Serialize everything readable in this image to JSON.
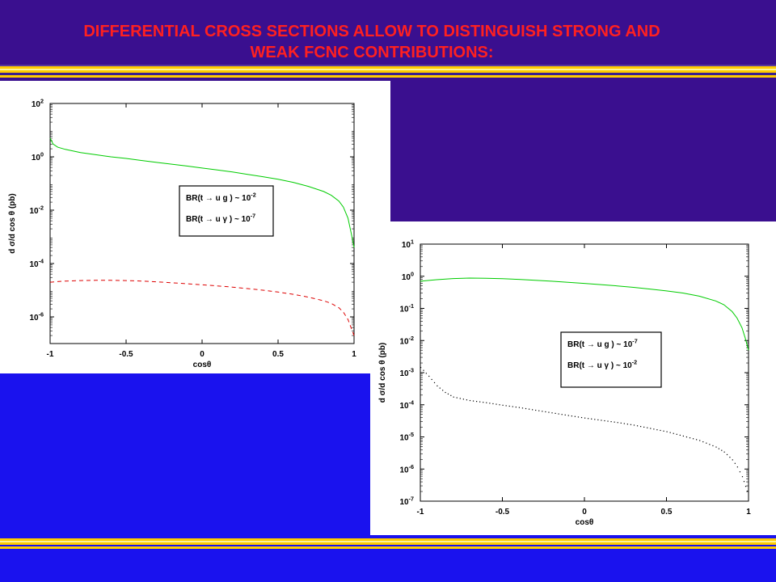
{
  "slide": {
    "title_line1": "DIFFERENTIAL CROSS SECTIONS ALLOW TO DISTINGUISH STRONG AND",
    "title_line2": "WEAK FCNC CONTRIBUTIONS:",
    "colors": {
      "title": "#ff2020",
      "background_top": "#3a0f8f",
      "background_bottom": "#1a12ee",
      "stripe": "#ffcc00"
    }
  },
  "chart_data": [
    {
      "type": "line",
      "xlabel": "cosθ",
      "ylabel": "d σ/d cos θ (pb)",
      "yscale": "log",
      "xlim": [
        -1,
        1
      ],
      "ylim": [
        1e-07,
        100
      ],
      "x_ticks": [
        "-1",
        "-0.5",
        "0",
        "0.5",
        "1"
      ],
      "y_ticks": [
        {
          "base": "10",
          "exp": "2"
        },
        {
          "base": "10",
          "exp": "0"
        },
        {
          "base": "10",
          "exp": "-2"
        },
        {
          "base": "10",
          "exp": "-4"
        },
        {
          "base": "10",
          "exp": "-6"
        }
      ],
      "legend": {
        "position": "center-right",
        "line1": {
          "text": "BR(t → u g ) ~ 10",
          "exp": "-2"
        },
        "line2": {
          "text": "BR(t → u γ )  ~ 10",
          "exp": "-7"
        }
      },
      "series": [
        {
          "color": "#00cc00",
          "style": "solid",
          "x": [
            -1,
            -0.98,
            -0.95,
            -0.9,
            -0.8,
            -0.7,
            -0.6,
            -0.5,
            -0.4,
            -0.3,
            -0.2,
            -0.1,
            0,
            0.1,
            0.2,
            0.3,
            0.4,
            0.5,
            0.6,
            0.7,
            0.8,
            0.85,
            0.9,
            0.93,
            0.96,
            0.98,
            0.99,
            1.0
          ],
          "y": [
            5,
            3,
            2.3,
            1.9,
            1.45,
            1.2,
            1.0,
            0.87,
            0.73,
            0.62,
            0.53,
            0.45,
            0.38,
            0.32,
            0.27,
            0.22,
            0.18,
            0.145,
            0.11,
            0.078,
            0.05,
            0.036,
            0.022,
            0.013,
            0.005,
            0.0015,
            0.0008,
            0.0004
          ]
        },
        {
          "color": "#dd0000",
          "style": "dashed",
          "x": [
            -1,
            -0.9,
            -0.8,
            -0.7,
            -0.6,
            -0.5,
            -0.4,
            -0.3,
            -0.2,
            -0.1,
            0,
            0.1,
            0.2,
            0.3,
            0.4,
            0.5,
            0.6,
            0.7,
            0.8,
            0.85,
            0.9,
            0.93,
            0.96,
            0.98,
            1.0
          ],
          "y": [
            2e-05,
            2.2e-05,
            2.3e-05,
            2.35e-05,
            2.35e-05,
            2.3e-05,
            2.2e-05,
            2.05e-05,
            1.9e-05,
            1.75e-05,
            1.6e-05,
            1.45e-05,
            1.3e-05,
            1.15e-05,
            1e-05,
            8.5e-06,
            7e-06,
            5.5e-06,
            4e-06,
            3.2e-06,
            2.2e-06,
            1.5e-06,
            8e-07,
            4e-07,
            2e-07
          ]
        }
      ]
    },
    {
      "type": "line",
      "xlabel": "cosθ",
      "ylabel": "d σ/d cos θ (pb)",
      "yscale": "log",
      "xlim": [
        -1,
        1
      ],
      "ylim": [
        1e-07,
        10
      ],
      "x_ticks": [
        "-1",
        "-0.5",
        "0",
        "0.5",
        "1"
      ],
      "y_ticks": [
        {
          "base": "10",
          "exp": "1"
        },
        {
          "base": "10",
          "exp": "0"
        },
        {
          "base": "10",
          "exp": "-1"
        },
        {
          "base": "10",
          "exp": "-2"
        },
        {
          "base": "10",
          "exp": "-3"
        },
        {
          "base": "10",
          "exp": "-4"
        },
        {
          "base": "10",
          "exp": "-5"
        },
        {
          "base": "10",
          "exp": "-6"
        },
        {
          "base": "10",
          "exp": "-7"
        }
      ],
      "legend": {
        "position": "center-right",
        "line1": {
          "text": "BR(t → u g ) ~ 10",
          "exp": "-7"
        },
        "line2": {
          "text": "BR(t → u γ )  ~ 10",
          "exp": "-2"
        }
      },
      "series": [
        {
          "color": "#00cc00",
          "style": "solid",
          "x": [
            -1,
            -0.9,
            -0.8,
            -0.7,
            -0.6,
            -0.5,
            -0.4,
            -0.3,
            -0.2,
            -0.1,
            0,
            0.1,
            0.2,
            0.3,
            0.4,
            0.5,
            0.6,
            0.7,
            0.8,
            0.85,
            0.9,
            0.93,
            0.96,
            0.98,
            1.0
          ],
          "y": [
            0.7,
            0.78,
            0.85,
            0.88,
            0.87,
            0.84,
            0.8,
            0.75,
            0.7,
            0.65,
            0.6,
            0.55,
            0.5,
            0.45,
            0.4,
            0.35,
            0.3,
            0.24,
            0.17,
            0.13,
            0.08,
            0.05,
            0.025,
            0.012,
            0.005
          ]
        },
        {
          "color": "#000000",
          "style": "dotted",
          "x": [
            -1,
            -0.95,
            -0.9,
            -0.85,
            -0.8,
            -0.7,
            -0.6,
            -0.5,
            -0.4,
            -0.3,
            -0.2,
            -0.1,
            0,
            0.1,
            0.2,
            0.3,
            0.4,
            0.5,
            0.6,
            0.7,
            0.8,
            0.85,
            0.9,
            0.93,
            0.96,
            0.98,
            1.0
          ],
          "y": [
            0.0015,
            0.0008,
            0.0004,
            0.00025,
            0.00018,
            0.00014,
            0.00012,
            0.0001,
            8.5e-05,
            7e-05,
            5.8e-05,
            4.8e-05,
            4e-05,
            3.4e-05,
            2.9e-05,
            2.4e-05,
            1.9e-05,
            1.5e-05,
            1.1e-05,
            8e-06,
            5e-06,
            3.5e-06,
            2e-06,
            1.2e-06,
            6e-07,
            3e-07,
            1.5e-07
          ]
        }
      ]
    }
  ]
}
